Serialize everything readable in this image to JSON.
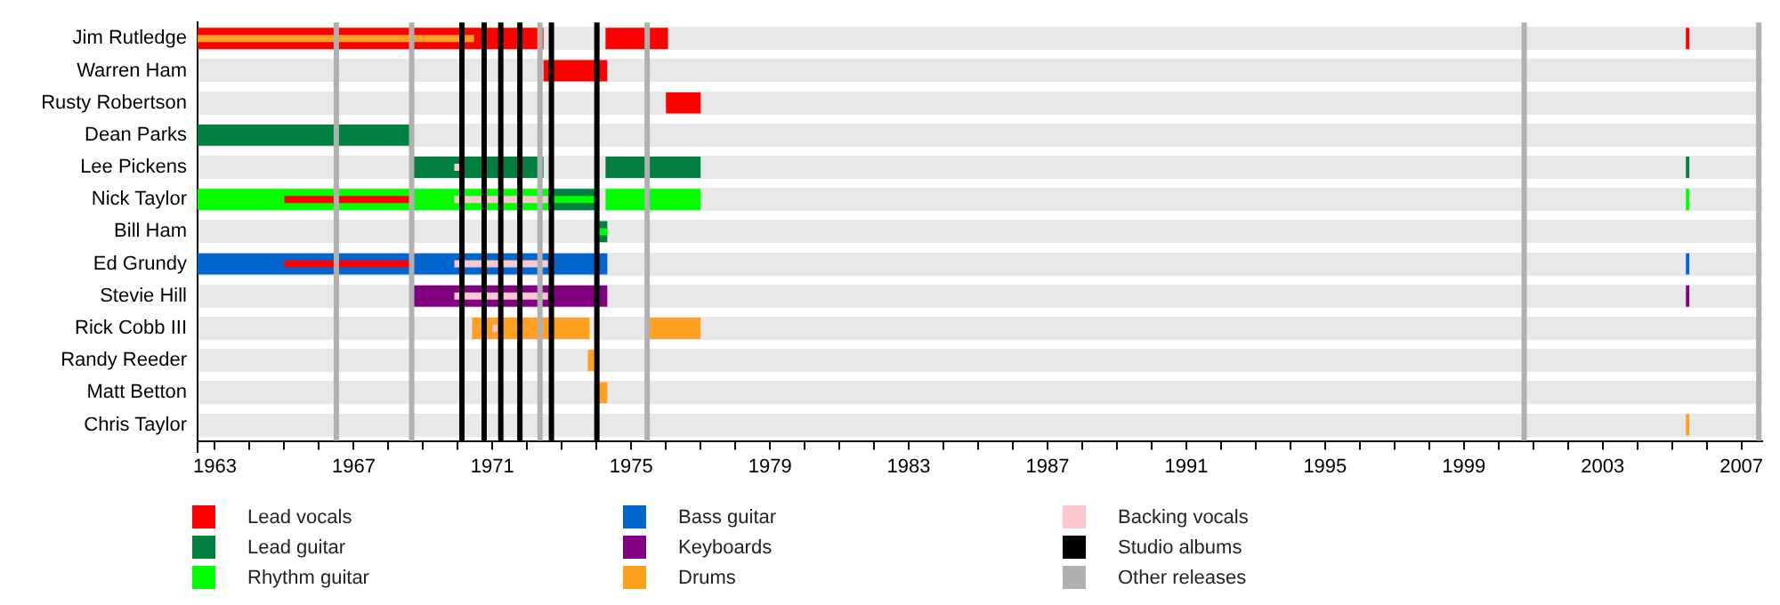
{
  "chart_data": {
    "type": "bar",
    "orientation": "horizontal",
    "categories": [
      "Jim Rutledge",
      "Warren Ham",
      "Rusty Robertson",
      "Dean Parks",
      "Lee Pickens",
      "Nick Taylor",
      "Bill Ham",
      "Ed Grundy",
      "Stevie Hill",
      "Rick Cobb III",
      "Randy Reeder",
      "Matt Betton",
      "Chris Taylor"
    ],
    "series": [
      {
        "name": "Lead vocals",
        "color": "#ff0000",
        "base": [
          1962.5,
          1972.47,
          1976.0,
          null,
          null,
          null,
          null,
          null,
          null,
          null,
          null,
          null,
          null
        ],
        "values": [
          9.97,
          1.84,
          1.0,
          null,
          null,
          null,
          null,
          null,
          null,
          null,
          null,
          null,
          null
        ]
      },
      {
        "color": "#ff0000",
        "base": [
          1974.26,
          null,
          null,
          null,
          null,
          null,
          null,
          null,
          null,
          null,
          null,
          null,
          null
        ],
        "values": [
          1.8,
          null,
          null,
          null,
          null,
          null,
          null,
          null,
          null,
          null,
          null,
          null,
          null
        ]
      },
      {
        "color": "#ff0000",
        "base": [
          2005.4,
          null,
          null,
          null,
          null,
          null,
          null,
          null,
          null,
          null,
          null,
          null,
          null
        ],
        "values": [
          0.1,
          null,
          null,
          null,
          null,
          null,
          null,
          null,
          null,
          null,
          null,
          null,
          null
        ]
      },
      {
        "name": "Lead guitar",
        "color": "#007f3f",
        "base": [
          null,
          null,
          null,
          1962.5,
          1968.69,
          1972.6,
          1974.0,
          null,
          null,
          null,
          null,
          null,
          null
        ],
        "values": [
          null,
          null,
          null,
          6.19,
          3.78,
          1.4,
          0.31,
          null,
          null,
          null,
          null,
          null,
          null
        ]
      },
      {
        "color": "#007f3f",
        "base": [
          null,
          null,
          null,
          null,
          1974.26,
          null,
          null,
          null,
          null,
          null,
          null,
          null,
          null
        ],
        "values": [
          null,
          null,
          null,
          null,
          2.74,
          null,
          null,
          null,
          null,
          null,
          null,
          null,
          null
        ]
      },
      {
        "color": "#007f3f",
        "base": [
          null,
          null,
          null,
          null,
          2005.4,
          null,
          null,
          null,
          null,
          null,
          null,
          null,
          null
        ],
        "values": [
          null,
          null,
          null,
          null,
          0.1,
          null,
          null,
          null,
          null,
          null,
          null,
          null,
          null
        ]
      },
      {
        "name": "Rhythm guitar",
        "color": "#00ff00",
        "base": [
          null,
          null,
          null,
          null,
          null,
          1962.5,
          null,
          null,
          null,
          null,
          null,
          null,
          null
        ],
        "values": [
          null,
          null,
          null,
          null,
          null,
          10.1,
          null,
          null,
          null,
          null,
          null,
          null,
          null
        ]
      },
      {
        "color": "#00ff00",
        "base": [
          null,
          null,
          null,
          null,
          null,
          1974.26,
          null,
          null,
          null,
          null,
          null,
          null,
          null
        ],
        "values": [
          null,
          null,
          null,
          null,
          null,
          2.74,
          null,
          null,
          null,
          null,
          null,
          null,
          null
        ]
      },
      {
        "color": "#00ff00",
        "base": [
          null,
          null,
          null,
          null,
          null,
          2005.4,
          null,
          null,
          null,
          null,
          null,
          null,
          null
        ],
        "values": [
          null,
          null,
          null,
          null,
          null,
          0.1,
          null,
          null,
          null,
          null,
          null,
          null,
          null
        ]
      },
      {
        "name": "Bass guitar",
        "color": "#0066cc",
        "base": [
          null,
          null,
          null,
          null,
          null,
          null,
          null,
          1962.5,
          null,
          null,
          null,
          null,
          null
        ],
        "values": [
          null,
          null,
          null,
          null,
          null,
          null,
          null,
          11.81,
          null,
          null,
          null,
          null,
          null
        ]
      },
      {
        "color": "#0066cc",
        "base": [
          null,
          null,
          null,
          null,
          null,
          null,
          null,
          2005.4,
          null,
          null,
          null,
          null,
          null
        ],
        "values": [
          null,
          null,
          null,
          null,
          null,
          null,
          null,
          0.1,
          null,
          null,
          null,
          null,
          null
        ]
      },
      {
        "name": "Keyboards",
        "color": "#800080",
        "base": [
          null,
          null,
          null,
          null,
          null,
          null,
          null,
          null,
          1968.69,
          null,
          null,
          null,
          null
        ],
        "values": [
          null,
          null,
          null,
          null,
          null,
          null,
          null,
          null,
          5.62,
          null,
          null,
          null,
          null
        ]
      },
      {
        "color": "#800080",
        "base": [
          null,
          null,
          null,
          null,
          null,
          null,
          null,
          null,
          2005.4,
          null,
          null,
          null,
          null
        ],
        "values": [
          null,
          null,
          null,
          null,
          null,
          null,
          null,
          null,
          0.1,
          null,
          null,
          null,
          null
        ]
      },
      {
        "name": "Drums",
        "color": "#ffa020",
        "base": [
          null,
          null,
          null,
          null,
          null,
          null,
          null,
          null,
          null,
          1970.41,
          1973.75,
          1974.0,
          2005.4
        ],
        "values": [
          null,
          null,
          null,
          null,
          null,
          null,
          null,
          null,
          null,
          3.39,
          0.25,
          0.31,
          0.1
        ]
      },
      {
        "color": "#ffa020",
        "base": [
          null,
          null,
          null,
          null,
          null,
          null,
          null,
          null,
          null,
          1975.5,
          null,
          null,
          null
        ],
        "values": [
          null,
          null,
          null,
          null,
          null,
          null,
          null,
          null,
          null,
          1.5,
          null,
          null,
          null
        ]
      },
      {
        "color": "#ffa020",
        "base": [
          1962.5,
          null,
          null,
          null,
          null,
          null,
          null,
          null,
          null,
          null,
          null,
          null,
          null
        ],
        "values": [
          7.97,
          null,
          null,
          null,
          null,
          null,
          null,
          null,
          null,
          null,
          null,
          null,
          null
        ]
      },
      {
        "color": "#ff0000",
        "base": [
          null,
          null,
          null,
          null,
          null,
          1965.0,
          null,
          1965.0,
          null,
          null,
          null,
          null,
          null
        ],
        "values": [
          null,
          null,
          null,
          null,
          null,
          3.69,
          null,
          3.69,
          null,
          null,
          null,
          null,
          null
        ]
      },
      {
        "name": "Backing vocals",
        "color": "#fbc8d0",
        "base": [
          null,
          null,
          null,
          null,
          1969.9,
          1969.9,
          null,
          1969.9,
          1969.9,
          1971.0,
          null,
          null,
          null
        ],
        "values": [
          null,
          null,
          null,
          null,
          0.15,
          2.7,
          null,
          2.7,
          2.7,
          0.15,
          null,
          null,
          null
        ]
      },
      {
        "color": "#00ff00",
        "base": [
          null,
          null,
          null,
          null,
          null,
          1972.6,
          1974.0,
          null,
          null,
          null,
          null,
          null,
          null
        ],
        "values": [
          null,
          null,
          null,
          null,
          null,
          1.4,
          0.31,
          null,
          null,
          null,
          null,
          null,
          null
        ]
      }
    ],
    "ref_lines": [
      {
        "axis": "x",
        "value": 1970.12,
        "label": "Studio albums",
        "color": "#000000"
      },
      {
        "axis": "x",
        "value": 1970.76,
        "color": "#000000"
      },
      {
        "axis": "x",
        "value": 1971.24,
        "color": "#000000"
      },
      {
        "axis": "x",
        "value": 1971.79,
        "color": "#000000"
      },
      {
        "axis": "x",
        "value": 1972.7,
        "color": "#000000"
      },
      {
        "axis": "x",
        "value": 1974.01,
        "color": "#000000"
      },
      {
        "axis": "x",
        "value": 1966.5,
        "label": "Other releases",
        "color": "#b0b0b0"
      },
      {
        "axis": "x",
        "value": 1968.67,
        "color": "#b0b0b0"
      },
      {
        "axis": "x",
        "value": 1972.37,
        "color": "#b0b0b0"
      },
      {
        "axis": "x",
        "value": 1975.46,
        "color": "#b0b0b0"
      },
      {
        "axis": "x",
        "value": 2000.74,
        "color": "#b0b0b0"
      },
      {
        "axis": "x",
        "value": 2007.5,
        "color": "#b0b0b0"
      }
    ],
    "xlim": [
      1962.5,
      2007.6
    ],
    "xticks": [
      1963,
      {
        "value": 1964,
        "label": null
      },
      {
        "value": 1965,
        "label": null
      },
      {
        "value": 1966,
        "label": null
      },
      1967,
      {
        "value": 1968,
        "label": null
      },
      {
        "value": 1969,
        "label": null
      },
      {
        "value": 1970,
        "label": null
      },
      1971,
      {
        "value": 1972,
        "label": null
      },
      {
        "value": 1973,
        "label": null
      },
      {
        "value": 1974,
        "label": null
      },
      1975,
      {
        "value": 1976,
        "label": null
      },
      {
        "value": 1977,
        "label": null
      },
      {
        "value": 1978,
        "label": null
      },
      1979,
      {
        "value": 1980,
        "label": null
      },
      {
        "value": 1981,
        "label": null
      },
      {
        "value": 1982,
        "label": null
      },
      1983,
      {
        "value": 1984,
        "label": null
      },
      {
        "value": 1985,
        "label": null
      },
      {
        "value": 1986,
        "label": null
      },
      1987,
      {
        "value": 1988,
        "label": null
      },
      {
        "value": 1989,
        "label": null
      },
      {
        "value": 1990,
        "label": null
      },
      1991,
      {
        "value": 1992,
        "label": null
      },
      {
        "value": 1993,
        "label": null
      },
      {
        "value": 1994,
        "label": null
      },
      1995,
      {
        "value": 1996,
        "label": null
      },
      {
        "value": 1997,
        "label": null
      },
      {
        "value": 1998,
        "label": null
      },
      1999,
      {
        "value": 2000,
        "label": null
      },
      {
        "value": 2001,
        "label": null
      },
      {
        "value": 2002,
        "label": null
      },
      2003,
      {
        "value": 2004,
        "label": null
      },
      {
        "value": 2005,
        "label": null
      },
      {
        "value": 2006,
        "label": null
      },
      2007
    ],
    "grid": "y",
    "legend": "bottom"
  }
}
